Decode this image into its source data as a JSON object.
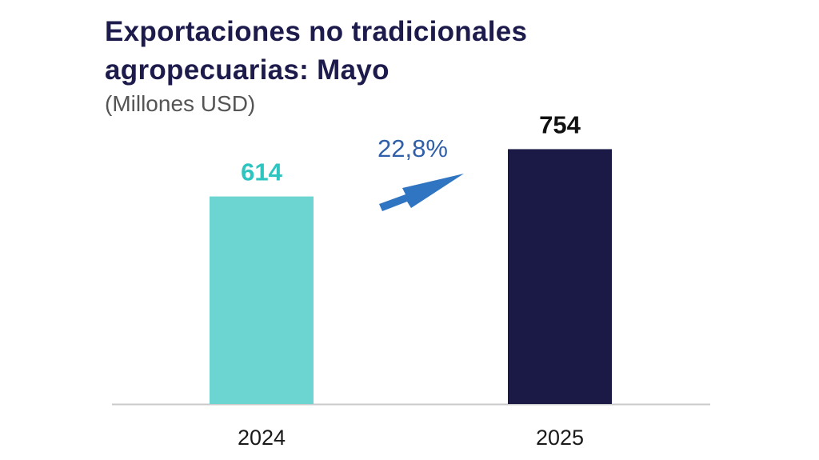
{
  "chart_data": {
    "type": "bar",
    "title": "Exportaciones no tradicionales agropecuarias: Mayo",
    "title_lines": [
      "Exportaciones no tradicionales",
      "agropecuarias: Mayo"
    ],
    "subtitle": "(Millones USD)",
    "categories": [
      "2024",
      "2025"
    ],
    "values": [
      614,
      754
    ],
    "data_labels": [
      "614",
      "754"
    ],
    "bar_colors": [
      "#6dd5d1",
      "#1b1a47"
    ],
    "data_label_colors": [
      "#2ec4c0",
      "#111111"
    ],
    "growth_label": "22,8%",
    "growth_color": "#2e5fa8",
    "arrow_color": "#2f75c2",
    "ylim": [
      0,
      800
    ],
    "grid": false,
    "legend": "none"
  }
}
